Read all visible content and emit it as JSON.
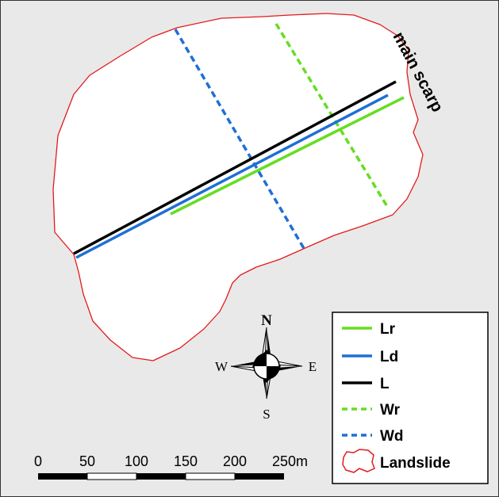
{
  "map": {
    "annotation": "main scarp",
    "landslide_outline_color": "#e31a1c",
    "background_color": "#e9e9e9"
  },
  "legend": {
    "items": [
      {
        "label": "Lr",
        "color": "#66dd22",
        "style": "solid"
      },
      {
        "label": "Ld",
        "color": "#1f6fd6",
        "style": "solid"
      },
      {
        "label": "L",
        "color": "#000000",
        "style": "solid"
      },
      {
        "label": "Wr",
        "color": "#66dd22",
        "style": "dashed"
      },
      {
        "label": "Wd",
        "color": "#1f6fd6",
        "style": "dashed"
      },
      {
        "label": "Landslide",
        "color": "#e31a1c",
        "style": "outline"
      }
    ]
  },
  "compass": {
    "north": "N",
    "south": "S",
    "east": "E",
    "west": "W"
  },
  "scale_bar": {
    "ticks": [
      "0",
      "50",
      "100",
      "150",
      "200",
      "250"
    ],
    "unit": "m"
  }
}
